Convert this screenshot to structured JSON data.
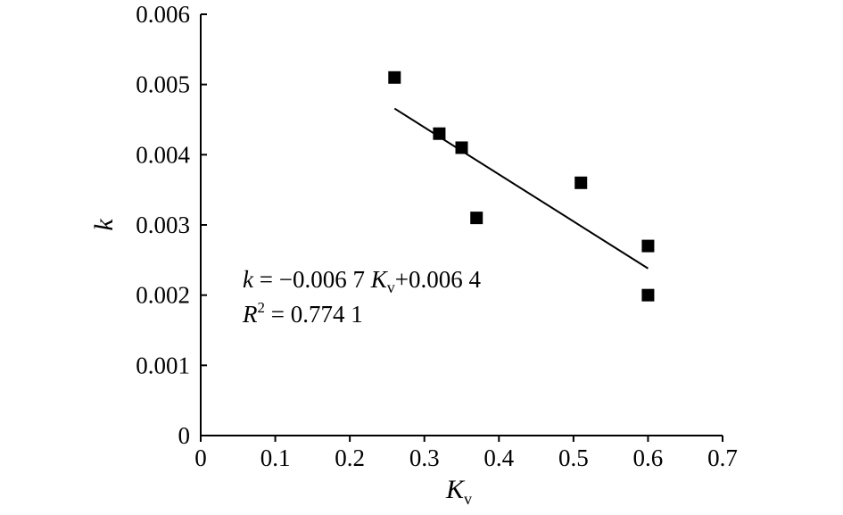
{
  "chart_data": {
    "type": "scatter",
    "xlabel": "K",
    "xlabel_sub": "v",
    "ylabel": "k",
    "xlim": [
      0,
      0.7
    ],
    "ylim": [
      0,
      0.006
    ],
    "x_ticks": [
      "0",
      "0.1",
      "0.2",
      "0.3",
      "0.4",
      "0.5",
      "0.6",
      "0.7"
    ],
    "y_ticks": [
      "0",
      "0.001",
      "0.002",
      "0.003",
      "0.004",
      "0.005",
      "0.006"
    ],
    "grid": false,
    "points": [
      {
        "x": 0.26,
        "y": 0.0051
      },
      {
        "x": 0.32,
        "y": 0.0043
      },
      {
        "x": 0.35,
        "y": 0.0041
      },
      {
        "x": 0.37,
        "y": 0.0031
      },
      {
        "x": 0.51,
        "y": 0.0036
      },
      {
        "x": 0.6,
        "y": 0.0027
      },
      {
        "x": 0.6,
        "y": 0.002
      }
    ],
    "trendline": {
      "slope": -0.0067,
      "intercept": 0.0064,
      "x_range": [
        0.26,
        0.6
      ]
    },
    "annotations": {
      "equation": {
        "k": "k",
        "eq": " = −0.006 7 ",
        "K": "K",
        "sub": "v",
        "rest": "+0.006 4"
      },
      "r2": {
        "R": "R",
        "sup": "2",
        "rest": " = 0.774 1"
      }
    }
  }
}
